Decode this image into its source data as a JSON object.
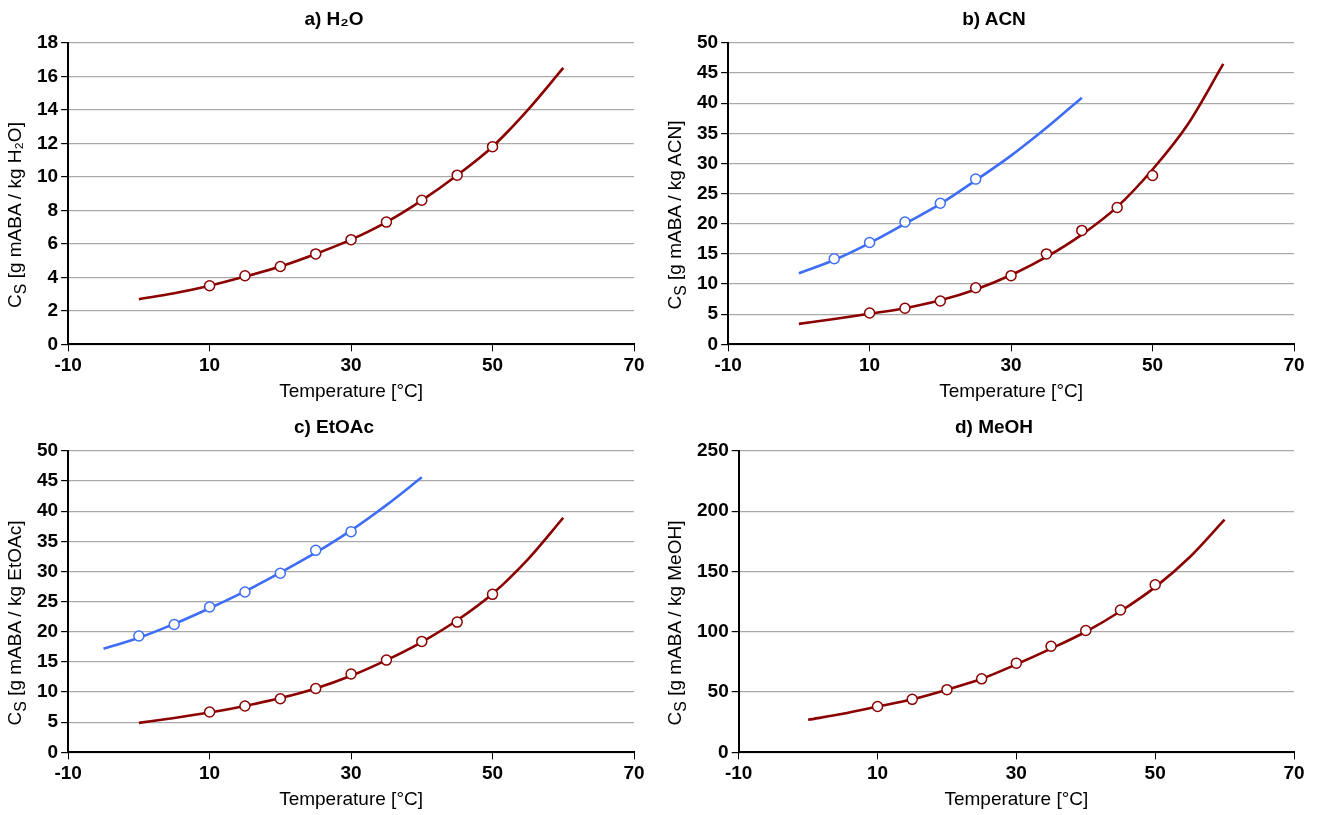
{
  "chart_data": [
    {
      "type": "line",
      "title": "a) H₂O",
      "xlabel": "Temperature [°C]",
      "ylabel": "C$_{S}$ [g mABA / kg H₂O]",
      "xlim": [
        -10,
        70
      ],
      "xticks": [
        -10,
        10,
        30,
        50,
        70
      ],
      "ylim": [
        0,
        18
      ],
      "yticks": [
        0,
        2,
        4,
        6,
        8,
        10,
        12,
        14,
        16,
        18
      ],
      "grid": "y",
      "series": [
        {
          "color": "#8b0000",
          "marker": "none",
          "x": [
            0,
            5,
            10,
            15,
            20,
            25,
            30,
            35,
            40,
            45,
            50,
            55,
            60
          ],
          "values": [
            2.7,
            3.05,
            3.5,
            4.05,
            4.65,
            5.4,
            6.25,
            7.3,
            8.6,
            10.1,
            11.8,
            14.0,
            16.5
          ]
        },
        {
          "type": "scatter",
          "color": "#8b0000",
          "marker": "circle",
          "x": [
            10,
            15,
            20,
            25,
            30,
            35,
            40,
            45,
            50
          ],
          "values": [
            3.5,
            4.1,
            4.65,
            5.4,
            6.25,
            7.3,
            8.6,
            10.1,
            11.8
          ]
        }
      ]
    },
    {
      "type": "line",
      "title": "b) ACN",
      "xlabel": "Temperature [°C]",
      "ylabel": "C$_{S}$ [g mABA / kg ACN]",
      "xlim": [
        -10,
        70
      ],
      "xticks": [
        -10,
        10,
        30,
        50,
        70
      ],
      "ylim": [
        0,
        50
      ],
      "yticks": [
        0,
        5,
        10,
        15,
        20,
        25,
        30,
        35,
        40,
        45,
        50
      ],
      "grid": "y",
      "series": [
        {
          "color": "#3d6ef5",
          "marker": "none",
          "x": [
            0,
            5,
            10,
            15,
            20,
            25,
            30,
            35,
            40
          ],
          "values": [
            11.8,
            14.0,
            16.8,
            20.0,
            23.3,
            27.2,
            31.3,
            35.9,
            40.9
          ]
        },
        {
          "type": "scatter",
          "color": "#3d6ef5",
          "marker": "circle",
          "x": [
            5,
            10,
            15,
            20,
            25
          ],
          "values": [
            14.2,
            16.9,
            20.3,
            23.4,
            27.4
          ]
        },
        {
          "color": "#8b0000",
          "marker": "none",
          "x": [
            0,
            5,
            10,
            15,
            20,
            25,
            30,
            35,
            40,
            45,
            50,
            55,
            60
          ],
          "values": [
            3.4,
            4.2,
            5.1,
            6.0,
            7.3,
            9.1,
            11.5,
            14.5,
            18.2,
            22.8,
            29.0,
            36.5,
            46.5
          ]
        },
        {
          "type": "scatter",
          "color": "#8b0000",
          "marker": "circle",
          "x": [
            10,
            15,
            20,
            25,
            30,
            35,
            40,
            45,
            50
          ],
          "values": [
            5.2,
            6.0,
            7.2,
            9.4,
            11.4,
            15.0,
            18.9,
            22.7,
            28.0
          ]
        }
      ]
    },
    {
      "type": "line",
      "title": "c) EtOAc",
      "xlabel": "Temperature [°C]",
      "ylabel": "C$_{S}$ [g mABA / kg EtOAc]",
      "xlim": [
        -10,
        70
      ],
      "xticks": [
        -10,
        10,
        30,
        50,
        70
      ],
      "ylim": [
        0,
        50
      ],
      "yticks": [
        0,
        5,
        10,
        15,
        20,
        25,
        30,
        35,
        40,
        45,
        50
      ],
      "grid": "y",
      "series": [
        {
          "color": "#3d6ef5",
          "marker": "none",
          "x": [
            -5,
            0,
            5,
            10,
            15,
            20,
            25,
            30,
            35,
            40
          ],
          "values": [
            17.2,
            19.0,
            21.3,
            23.9,
            26.7,
            29.8,
            33.1,
            36.8,
            41.0,
            45.6
          ]
        },
        {
          "type": "scatter",
          "color": "#3d6ef5",
          "marker": "circle",
          "x": [
            0,
            5,
            10,
            15,
            20,
            25,
            30
          ],
          "values": [
            19.3,
            21.2,
            24.1,
            26.6,
            29.7,
            33.5,
            36.6
          ]
        },
        {
          "color": "#8b0000",
          "marker": "none",
          "x": [
            0,
            5,
            10,
            15,
            20,
            25,
            30,
            35,
            40,
            45,
            50,
            55,
            60
          ],
          "values": [
            4.9,
            5.7,
            6.6,
            7.7,
            9.0,
            10.6,
            12.7,
            15.3,
            18.3,
            21.9,
            26.3,
            32.0,
            38.9
          ]
        },
        {
          "type": "scatter",
          "color": "#8b0000",
          "marker": "circle",
          "x": [
            10,
            15,
            20,
            25,
            30,
            35,
            40,
            45,
            50
          ],
          "values": [
            6.7,
            7.7,
            8.9,
            10.6,
            13.0,
            15.3,
            18.4,
            21.6,
            26.2
          ]
        }
      ]
    },
    {
      "type": "line",
      "title": "d) MeOH",
      "xlabel": "Temperature [°C]",
      "ylabel": "C$_{S}$ [g mABA / kg MeOH]",
      "xlim": [
        -10,
        70
      ],
      "xticks": [
        -10,
        10,
        30,
        50,
        70
      ],
      "ylim": [
        0,
        250
      ],
      "yticks": [
        0,
        50,
        100,
        150,
        200,
        250
      ],
      "grid": "y",
      "series": [
        {
          "color": "#8b0000",
          "marker": "none",
          "x": [
            0,
            5,
            10,
            15,
            20,
            25,
            30,
            35,
            40,
            45,
            50,
            55,
            60
          ],
          "values": [
            27,
            32,
            38,
            44,
            52,
            61,
            73,
            86,
            100,
            117,
            137,
            162,
            193
          ]
        },
        {
          "type": "scatter",
          "color": "#8b0000",
          "marker": "circle",
          "x": [
            10,
            15,
            20,
            25,
            30,
            35,
            40,
            45,
            50
          ],
          "values": [
            38,
            44,
            52,
            61,
            74,
            88,
            101,
            118,
            139
          ]
        }
      ]
    }
  ]
}
